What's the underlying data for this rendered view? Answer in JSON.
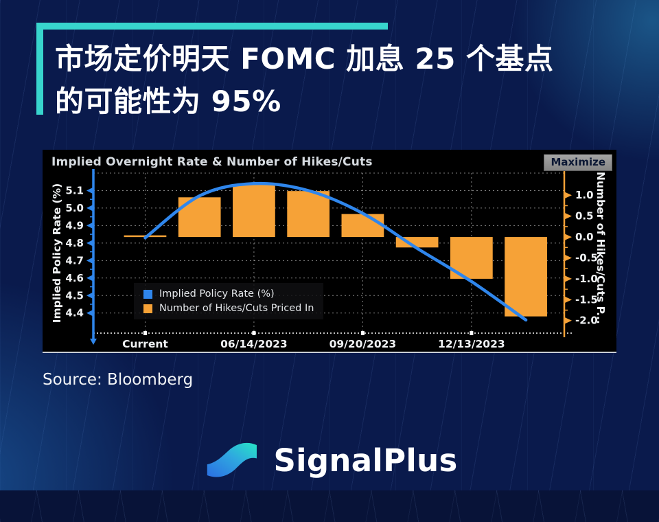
{
  "header": {
    "title_line1": "市场定价明天 FOMC 加息 25 个基点",
    "title_line2": "的可能性为 95%",
    "accent_color": "#38D5CD"
  },
  "chart": {
    "window_title": "Implied Overnight Rate & Number of Hikes/Cuts",
    "maximize_label": "Maximize"
  },
  "chart_data": {
    "type": "combo",
    "title": "Implied Overnight Rate & Number of Hikes/Cuts",
    "categories": [
      "Current",
      "",
      "06/14/2023",
      "",
      "09/20/2023",
      "",
      "12/13/2023",
      ""
    ],
    "x_tick_labels": [
      "Current",
      "06/14/2023",
      "09/20/2023",
      "12/13/2023"
    ],
    "x_tick_indexes": [
      0,
      2,
      4,
      6
    ],
    "series": [
      {
        "name": "Implied Policy Rate (%)",
        "type": "line",
        "axis": "left",
        "color": "#2F86EC",
        "values": [
          4.83,
          5.07,
          5.14,
          5.1,
          4.97,
          4.77,
          4.58,
          4.36
        ]
      },
      {
        "name": "Number of Hikes/Cuts Priced In",
        "type": "bar",
        "axis": "right",
        "color": "#F6A237",
        "values": [
          0.04,
          0.95,
          1.25,
          1.1,
          0.55,
          -0.25,
          -1.0,
          -1.9
        ]
      }
    ],
    "left_axis": {
      "title": "Implied Policy Rate (%)",
      "ticks": [
        5.1,
        5.0,
        4.9,
        4.8,
        4.7,
        4.6,
        4.5,
        4.4
      ],
      "range": [
        4.285,
        5.2
      ]
    },
    "right_axis": {
      "title": "Number of Hikes/Cuts P...",
      "ticks": [
        1.0,
        0.5,
        0.0,
        -0.5,
        -1.0,
        -1.5,
        -2.0
      ],
      "range": [
        -2.3,
        1.53
      ]
    },
    "grid": true,
    "legend_position": "lower-left-inside",
    "colors": {
      "grid": "rgba(255,255,255,0.5)",
      "tick_text": "#F0F2F4",
      "plot_background": "#000000"
    }
  },
  "footer": {
    "source": "Source: Bloomberg",
    "brand": "SignalPlus"
  }
}
